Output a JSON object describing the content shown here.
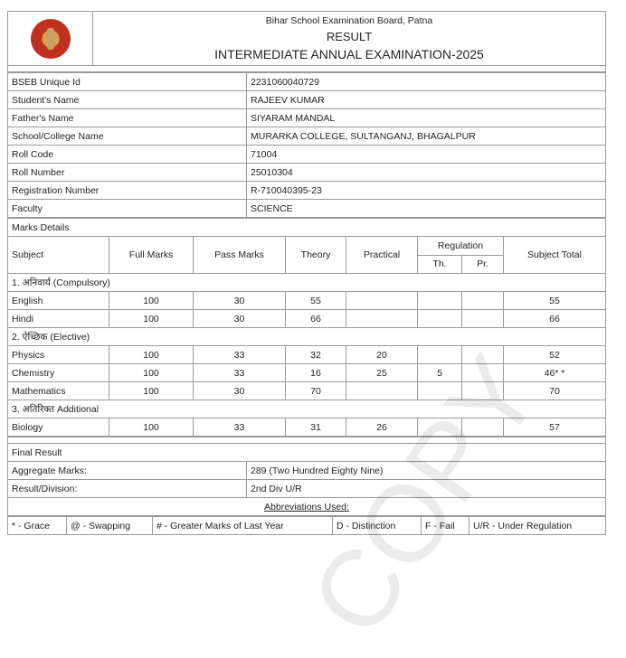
{
  "header": {
    "board": "Bihar School Examination Board, Patna",
    "title": "RESULT",
    "exam": "INTERMEDIATE ANNUAL EXAMINATION-2025",
    "logo": "bseb-emblem"
  },
  "info": [
    {
      "label": "BSEB Unique Id",
      "value": "2231060040729"
    },
    {
      "label": "Student's Name",
      "value": "RAJEEV KUMAR"
    },
    {
      "label": "Father's Name",
      "value": "SIYARAM MANDAL"
    },
    {
      "label": "School/College Name",
      "value": "MURARKA COLLEGE, SULTANGANJ, BHAGALPUR"
    },
    {
      "label": "Roll Code",
      "value": "71004"
    },
    {
      "label": "Roll Number",
      "value": "25010304"
    },
    {
      "label": "Registration Number",
      "value": "R-710040395-23"
    },
    {
      "label": "Faculty",
      "value": "SCIENCE"
    }
  ],
  "marks": {
    "title": "Marks Details",
    "headers": {
      "subject": "Subject",
      "full": "Full Marks",
      "pass": "Pass Marks",
      "theory": "Theory",
      "practical": "Practical",
      "regulation": "Regulation",
      "th": "Th.",
      "pr": "Pr.",
      "total": "Subject Total"
    },
    "groups": [
      {
        "title": "1. अनिवार्य (Compulsory)",
        "rows": [
          {
            "subject": "English",
            "full": "100",
            "pass": "30",
            "theory": "55",
            "practical": "",
            "th": "",
            "pr": "",
            "total": "55"
          },
          {
            "subject": "Hindi",
            "full": "100",
            "pass": "30",
            "theory": "66",
            "practical": "",
            "th": "",
            "pr": "",
            "total": "66"
          }
        ]
      },
      {
        "title": "2. ऐच्छिक (Elective)",
        "rows": [
          {
            "subject": "Physics",
            "full": "100",
            "pass": "33",
            "theory": "32",
            "practical": "20",
            "th": "",
            "pr": "",
            "total": "52"
          },
          {
            "subject": "Chemistry",
            "full": "100",
            "pass": "33",
            "theory": "16",
            "practical": "25",
            "th": "5",
            "pr": "",
            "total": "46* *"
          },
          {
            "subject": "Mathematics",
            "full": "100",
            "pass": "30",
            "theory": "70",
            "practical": "",
            "th": "",
            "pr": "",
            "total": "70"
          }
        ]
      },
      {
        "title": "3. अतिरिक्त Additional",
        "rows": [
          {
            "subject": "Biology",
            "full": "100",
            "pass": "33",
            "theory": "31",
            "practical": "26",
            "th": "",
            "pr": "",
            "total": "57"
          }
        ]
      }
    ]
  },
  "final": {
    "title": "Final Result",
    "aggregate_label": "Aggregate Marks:",
    "aggregate_value": "289 (Two Hundred Eighty Nine)",
    "result_label": "Result/Division:",
    "result_value": "2nd Div U/R"
  },
  "abbreviations": {
    "title": "Abbreviations Used:",
    "items": [
      "* - Grace",
      "@ - Swapping",
      "# - Greater Marks of Last Year",
      "D - Distinction",
      "F - Fail",
      "U/R - Under Regulation"
    ]
  },
  "watermark": "COPY"
}
